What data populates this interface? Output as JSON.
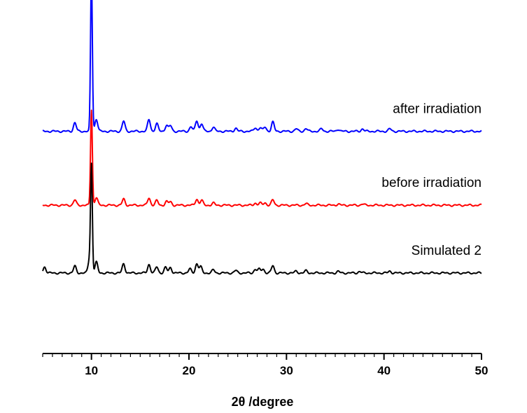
{
  "chart_data": {
    "type": "line",
    "title": "",
    "xlabel": "2θ /degree",
    "ylabel": "",
    "xlim": [
      5,
      50
    ],
    "xticks": [
      10,
      20,
      30,
      40,
      50
    ],
    "grid": false,
    "legend": "labels placed right, above each trace",
    "series": [
      {
        "name": "after irradiation",
        "color": "#0000ff",
        "baseline": 0.71,
        "peaks": [
          {
            "x": 8.3,
            "h": 0.028
          },
          {
            "x": 10.0,
            "h": 0.51
          },
          {
            "x": 10.5,
            "h": 0.04
          },
          {
            "x": 13.3,
            "h": 0.033
          },
          {
            "x": 15.9,
            "h": 0.038
          },
          {
            "x": 16.7,
            "h": 0.025
          },
          {
            "x": 17.7,
            "h": 0.02
          },
          {
            "x": 18.1,
            "h": 0.018
          },
          {
            "x": 20.2,
            "h": 0.015
          },
          {
            "x": 20.8,
            "h": 0.035
          },
          {
            "x": 21.3,
            "h": 0.025
          },
          {
            "x": 22.5,
            "h": 0.014
          },
          {
            "x": 24.8,
            "h": 0.01
          },
          {
            "x": 26.8,
            "h": 0.012
          },
          {
            "x": 27.3,
            "h": 0.012
          },
          {
            "x": 27.8,
            "h": 0.014
          },
          {
            "x": 28.6,
            "h": 0.03
          },
          {
            "x": 31.0,
            "h": 0.008
          },
          {
            "x": 32.0,
            "h": 0.009
          },
          {
            "x": 33.6,
            "h": 0.008
          },
          {
            "x": 35.3,
            "h": 0.007
          },
          {
            "x": 37.8,
            "h": 0.008
          },
          {
            "x": 40.6,
            "h": 0.008
          }
        ]
      },
      {
        "name": "before irradiation",
        "color": "#ff0000",
        "baseline": 0.47,
        "peaks": [
          {
            "x": 8.3,
            "h": 0.017
          },
          {
            "x": 10.0,
            "h": 0.31
          },
          {
            "x": 10.5,
            "h": 0.025
          },
          {
            "x": 13.3,
            "h": 0.02
          },
          {
            "x": 15.9,
            "h": 0.024
          },
          {
            "x": 16.7,
            "h": 0.015
          },
          {
            "x": 17.7,
            "h": 0.012
          },
          {
            "x": 18.1,
            "h": 0.011
          },
          {
            "x": 20.8,
            "h": 0.02
          },
          {
            "x": 21.3,
            "h": 0.016
          },
          {
            "x": 22.5,
            "h": 0.007
          },
          {
            "x": 26.8,
            "h": 0.007
          },
          {
            "x": 27.3,
            "h": 0.007
          },
          {
            "x": 27.8,
            "h": 0.008
          },
          {
            "x": 28.6,
            "h": 0.017
          },
          {
            "x": 32.0,
            "h": 0.005
          },
          {
            "x": 35.3,
            "h": 0.004
          },
          {
            "x": 37.8,
            "h": 0.004
          }
        ]
      },
      {
        "name": "Simulated 2",
        "color": "#000000",
        "baseline": 0.25,
        "peaks": [
          {
            "x": 5.2,
            "h": 0.02
          },
          {
            "x": 8.3,
            "h": 0.022
          },
          {
            "x": 9.8,
            "h": 0.045
          },
          {
            "x": 10.0,
            "h": 0.34
          },
          {
            "x": 10.5,
            "h": 0.035
          },
          {
            "x": 13.3,
            "h": 0.03
          },
          {
            "x": 15.9,
            "h": 0.028
          },
          {
            "x": 16.7,
            "h": 0.02
          },
          {
            "x": 17.6,
            "h": 0.018
          },
          {
            "x": 18.1,
            "h": 0.018
          },
          {
            "x": 20.1,
            "h": 0.013
          },
          {
            "x": 20.8,
            "h": 0.03
          },
          {
            "x": 21.2,
            "h": 0.02
          },
          {
            "x": 22.5,
            "h": 0.01
          },
          {
            "x": 24.8,
            "h": 0.008
          },
          {
            "x": 26.8,
            "h": 0.012
          },
          {
            "x": 27.2,
            "h": 0.012
          },
          {
            "x": 27.6,
            "h": 0.013
          },
          {
            "x": 28.6,
            "h": 0.024
          },
          {
            "x": 31.0,
            "h": 0.006
          },
          {
            "x": 32.0,
            "h": 0.007
          },
          {
            "x": 35.3,
            "h": 0.005
          },
          {
            "x": 37.5,
            "h": 0.005
          },
          {
            "x": 40.6,
            "h": 0.006
          }
        ]
      }
    ]
  }
}
